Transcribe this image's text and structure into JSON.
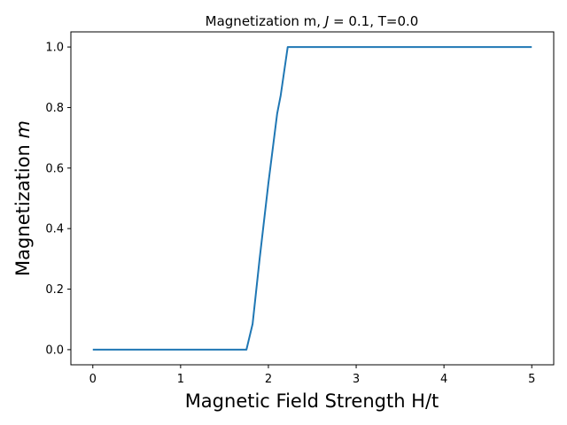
{
  "chart_data": {
    "type": "line",
    "title": "Magnetization m, J = 0.1, T=0.0",
    "xlabel": "Magnetic Field Strength H/t",
    "ylabel": "Magnetization m",
    "xlim": [
      -0.25,
      5.25
    ],
    "ylim": [
      -0.05,
      1.05
    ],
    "xticks": [
      0,
      1,
      2,
      3,
      4,
      5
    ],
    "yticks": [
      0.0,
      0.2,
      0.4,
      0.6,
      0.8,
      1.0
    ],
    "xtick_labels": [
      "0",
      "1",
      "2",
      "3",
      "4",
      "5"
    ],
    "ytick_labels": [
      "0.0",
      "0.2",
      "0.4",
      "0.6",
      "0.8",
      "1.0"
    ],
    "grid": false,
    "series": [
      {
        "color": "#1f77b4",
        "x": [
          0,
          0.1,
          0.2,
          0.3,
          0.4,
          0.5,
          0.6,
          0.7,
          0.8,
          0.9,
          1.0,
          1.1,
          1.2,
          1.3,
          1.4,
          1.5,
          1.6,
          1.7,
          1.75,
          1.82,
          1.9,
          2.0,
          2.1,
          2.14,
          2.22,
          2.3,
          2.5,
          3.0,
          3.5,
          4.0,
          4.5,
          5.0
        ],
        "y": [
          0,
          0,
          0,
          0,
          0,
          0,
          0,
          0,
          0,
          0,
          0,
          0,
          0,
          0,
          0,
          0,
          0,
          0,
          0,
          0.085,
          0.3,
          0.55,
          0.78,
          0.84,
          1.0,
          1.0,
          1.0,
          1.0,
          1.0,
          1.0,
          1.0,
          1.0
        ]
      }
    ]
  }
}
